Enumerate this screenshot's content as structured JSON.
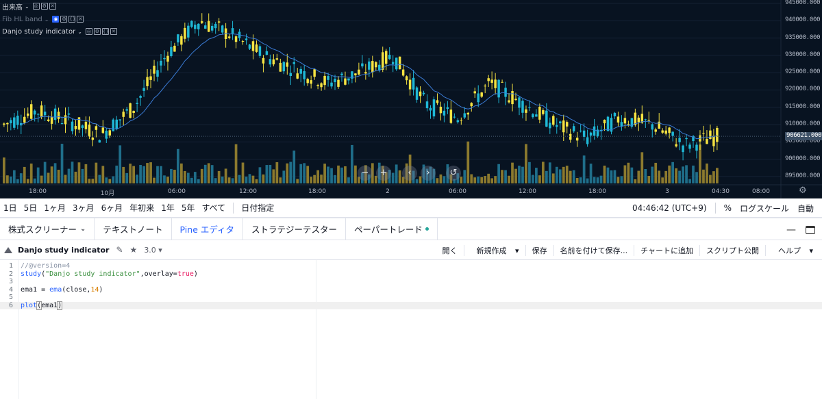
{
  "chart": {
    "legend": [
      {
        "name": "出来高",
        "dim": false,
        "buttons": [
          "◎",
          "⚙",
          "✕"
        ]
      },
      {
        "name": "Fib HL band",
        "dim": true,
        "buttons": [
          "◉",
          "⚙",
          "{}",
          "✕"
        ]
      },
      {
        "name": "Danjo study indicator",
        "dim": false,
        "buttons": [
          "◎",
          "⚙",
          "{}",
          "✕"
        ]
      }
    ],
    "price_axis": [
      "945000.000",
      "940000.000",
      "935000.000",
      "930000.000",
      "925000.000",
      "920000.000",
      "915000.000",
      "910000.000",
      "905000.000",
      "900000.000",
      "895000.000"
    ],
    "current_price": "906621.000",
    "time_axis": [
      "18:00",
      "10月",
      "06:00",
      "12:00",
      "18:00",
      "2",
      "06:00",
      "12:00",
      "18:00",
      "3",
      "04:30",
      "08:00"
    ],
    "nav_buttons": [
      "−",
      "+",
      "‹",
      "›",
      "↺"
    ],
    "colors": {
      "background": "#081321",
      "bull": "#f5e342",
      "bear": "#1fb8d6",
      "ema": "#3a7bd5",
      "vol_bull": "#8c7a2e",
      "vol_bear": "#1f6e8a"
    }
  },
  "chart_data": {
    "type": "candlestick",
    "title": "",
    "ylim": [
      893000,
      946000
    ],
    "current_price": 906621,
    "series": [
      {
        "name": "Danjo study indicator",
        "type": "line"
      }
    ],
    "ohlc_sample": [
      [
        908000,
        912000,
        906000,
        910000
      ],
      [
        910000,
        916000,
        908000,
        914000
      ],
      [
        914000,
        918000,
        910000,
        911000
      ],
      [
        911000,
        913000,
        905000,
        907000
      ],
      [
        907000,
        917000,
        906000,
        915000
      ],
      [
        915000,
        932000,
        914000,
        930000
      ],
      [
        930000,
        944000,
        928000,
        940000
      ],
      [
        940000,
        942000,
        934000,
        936000
      ],
      [
        936000,
        938000,
        928000,
        930000
      ],
      [
        930000,
        932000,
        924000,
        926000
      ],
      [
        926000,
        930000,
        920000,
        922000
      ],
      [
        922000,
        928000,
        918000,
        925000
      ],
      [
        925000,
        933000,
        922000,
        930000
      ],
      [
        930000,
        931000,
        914000,
        916000
      ],
      [
        916000,
        918000,
        910000,
        912000
      ],
      [
        912000,
        925000,
        910000,
        922000
      ],
      [
        922000,
        924000,
        914000,
        916000
      ],
      [
        916000,
        918000,
        908000,
        910000
      ],
      [
        910000,
        912000,
        903000,
        906000
      ],
      [
        906000,
        914000,
        904000,
        912000
      ],
      [
        912000,
        916000,
        908000,
        910000
      ],
      [
        910000,
        912000,
        902000,
        904000
      ],
      [
        904000,
        909000,
        902000,
        906621
      ]
    ]
  },
  "range_bar": {
    "ranges": [
      "1日",
      "5日",
      "1ヶ月",
      "3ヶ月",
      "6ヶ月",
      "年初来",
      "1年",
      "5年",
      "すべて"
    ],
    "date_pick": "日付指定",
    "clock": "04:46:42 (UTC+9)",
    "percent": "%",
    "log": "ログスケール",
    "auto": "自動"
  },
  "panel": {
    "tabs": [
      "株式スクリーナー",
      "テキストノート",
      "Pine エディタ",
      "ストラテジーテスター",
      "ペーパートレード"
    ],
    "screener_chevron": "⌄",
    "minimize": "—"
  },
  "editor": {
    "script_name": "Danjo study indicator",
    "version": "3.0",
    "actions": [
      "開く",
      "新規作成",
      "保存",
      "名前を付けて保存...",
      "チャートに追加",
      "スクリプト公開",
      "ヘルプ"
    ],
    "lines": [
      "1",
      "2",
      "3",
      "4",
      "5",
      "6"
    ],
    "code": {
      "l1_comment": "//@version=4",
      "l2_fn": "study",
      "l2_open": "(",
      "l2_str": "\"Danjo study indicator\"",
      "l2_mid": ",overlay=",
      "l2_kw": "true",
      "l2_close": ")",
      "l4_a": "ema1 = ",
      "l4_fn": "ema",
      "l4_b": "(close,",
      "l4_num": "14",
      "l4_c": ")",
      "l6_fn": "plot",
      "l6_open": "(",
      "l6_arg": "ema1",
      "l6_close": ")"
    }
  }
}
